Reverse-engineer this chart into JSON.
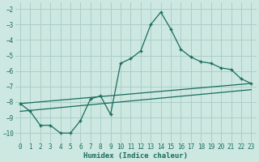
{
  "xlabel": "Humidex (Indice chaleur)",
  "bg_color": "#cce8e0",
  "grid_color": "#aacfc8",
  "line_color": "#1a6b5e",
  "xlim": [
    -0.5,
    23.5
  ],
  "ylim": [
    -10.6,
    -1.6
  ],
  "yticks": [
    -10,
    -9,
    -8,
    -7,
    -6,
    -5,
    -4,
    -3,
    -2
  ],
  "xticks": [
    0,
    1,
    2,
    3,
    4,
    5,
    6,
    7,
    8,
    9,
    10,
    11,
    12,
    13,
    14,
    15,
    16,
    17,
    18,
    19,
    20,
    21,
    22,
    23
  ],
  "series1_x": [
    0,
    1,
    2,
    3,
    4,
    5,
    6,
    7,
    8,
    9,
    10,
    11,
    12,
    13,
    14,
    15,
    16,
    17,
    18,
    19,
    20,
    21,
    22,
    23
  ],
  "series1_y": [
    -8.1,
    -8.6,
    -9.5,
    -9.5,
    -10.0,
    -10.0,
    -9.2,
    -7.8,
    -7.6,
    -8.8,
    -5.5,
    -5.2,
    -4.7,
    -3.0,
    -2.2,
    -3.3,
    -4.6,
    -5.1,
    -5.4,
    -5.5,
    -5.8,
    -5.9,
    -6.5,
    -6.8
  ],
  "series2_x": [
    0,
    23
  ],
  "series2_y": [
    -8.1,
    -6.8
  ],
  "series3_x": [
    0,
    23
  ],
  "series3_y": [
    -8.6,
    -7.2
  ],
  "marker": "+"
}
